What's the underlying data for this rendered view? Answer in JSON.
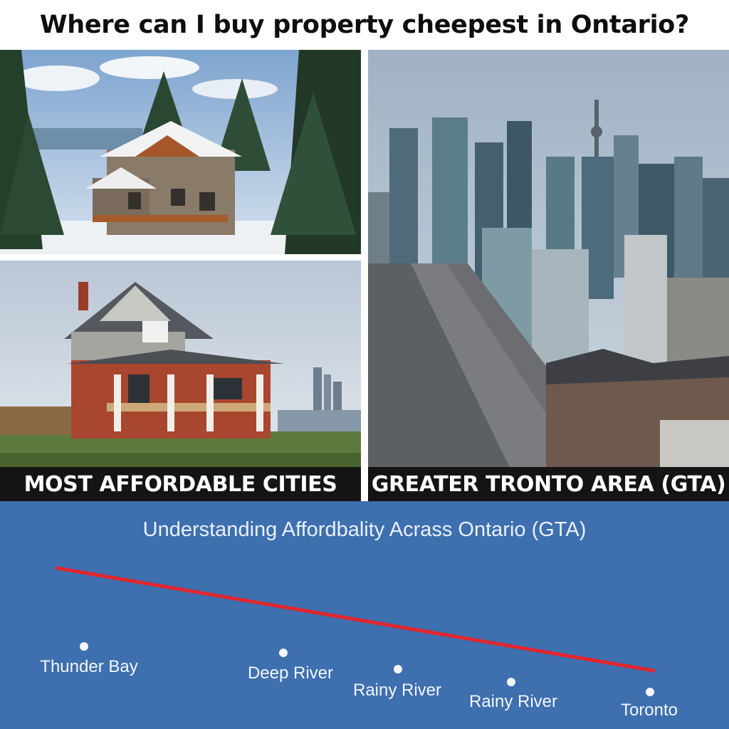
{
  "header": {
    "title": "Where can I buy property cheepest in Ontario?"
  },
  "photos": {
    "cabin": {
      "icon": "snowy-cabin-photo"
    },
    "house": {
      "icon": "brick-house-photo"
    },
    "city": {
      "icon": "city-skyline-photo"
    }
  },
  "captions": {
    "left": "MOST AFFORDABLE CITIES",
    "right": "GREATER TRONTO AREA (GTA)"
  },
  "panel": {
    "title": "Understanding Affordbality Acrass Ontario (GTA)",
    "background": "#3e6fae",
    "line_color": "#e0262e",
    "points": [
      {
        "label": "Thunder Bay"
      },
      {
        "label": "Deep River"
      },
      {
        "label": "Rainy River"
      },
      {
        "label": "Rainy River"
      },
      {
        "label": "Toronto"
      }
    ]
  }
}
